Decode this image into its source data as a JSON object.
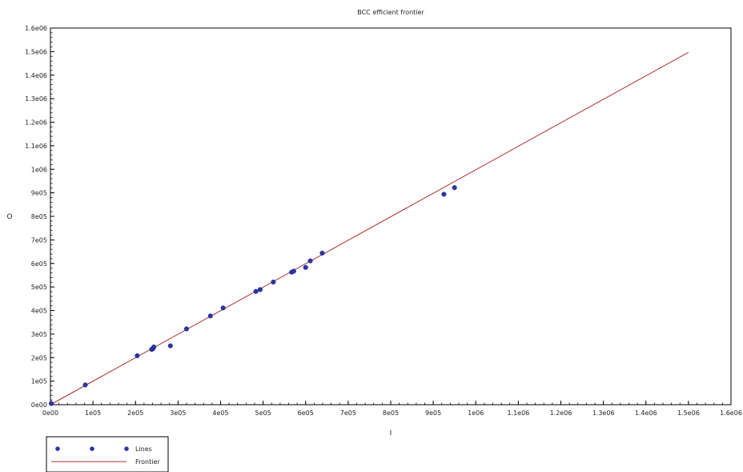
{
  "chart_data": {
    "type": "scatter",
    "title": "BCC efficient frontier",
    "xlabel": "I",
    "ylabel": "O",
    "xlim": [
      0,
      1600000
    ],
    "ylim": [
      0,
      1600000
    ],
    "x_ticks": [
      0,
      100000,
      200000,
      300000,
      400000,
      500000,
      600000,
      700000,
      800000,
      900000,
      1000000,
      1100000,
      1200000,
      1300000,
      1400000,
      1500000,
      1600000
    ],
    "x_tick_labels": [
      "0e00",
      "1e05",
      "2e05",
      "3e05",
      "4e05",
      "5e05",
      "6e05",
      "7e05",
      "8e05",
      "9e05",
      "1e06",
      "1.1e06",
      "1.2e06",
      "1.3e06",
      "1.4e06",
      "1.5e06",
      "1.6e06"
    ],
    "y_ticks": [
      0,
      100000,
      200000,
      300000,
      400000,
      500000,
      600000,
      700000,
      800000,
      900000,
      1000000,
      1100000,
      1200000,
      1300000,
      1400000,
      1500000,
      1600000
    ],
    "y_tick_labels": [
      "0e00",
      "1e05",
      "2e05",
      "3e05",
      "4e05",
      "5e05",
      "6e05",
      "7e05",
      "8e05",
      "9e05",
      "1e06",
      "1.1e06",
      "1.2e06",
      "1.3e06",
      "1.4e06",
      "1.5e06",
      "1.6e06"
    ],
    "grid": false,
    "legend_position": "bottom-left",
    "series": [
      {
        "name": "Lines",
        "kind": "scatter",
        "color": "#2a35a6",
        "points": [
          [
            2000,
            5000
          ],
          [
            82000,
            84000
          ],
          [
            204000,
            208000
          ],
          [
            238000,
            235000
          ],
          [
            241000,
            238000
          ],
          [
            243000,
            245000
          ],
          [
            282000,
            250000
          ],
          [
            320000,
            322000
          ],
          [
            376000,
            377000
          ],
          [
            406000,
            411000
          ],
          [
            483000,
            481000
          ],
          [
            493000,
            489000
          ],
          [
            524000,
            521000
          ],
          [
            567000,
            563000
          ],
          [
            572000,
            567000
          ],
          [
            600000,
            583000
          ],
          [
            611000,
            611000
          ],
          [
            639000,
            644000
          ],
          [
            925000,
            894000
          ],
          [
            950000,
            922000
          ]
        ]
      },
      {
        "name": "Frontier",
        "kind": "line",
        "color": "#b03030",
        "points": [
          [
            0,
            0
          ],
          [
            1500000,
            1497000
          ]
        ]
      }
    ]
  }
}
